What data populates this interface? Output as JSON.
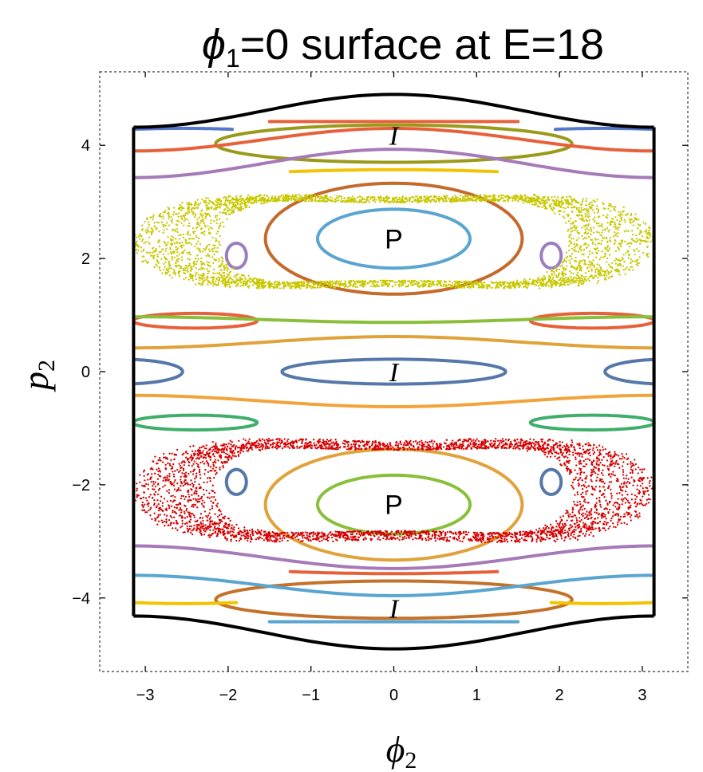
{
  "chart_data": {
    "type": "scatter",
    "title": {
      "phi": "ϕ",
      "sub": "1",
      "rest": "=0 surface at E=18"
    },
    "xlabel": {
      "phi": "ϕ",
      "sub": "2"
    },
    "ylabel": {
      "p": "p",
      "sub": "2"
    },
    "xlim": [
      -3.55,
      3.55
    ],
    "ylim": [
      -5.3,
      5.3
    ],
    "xticks": [
      -3,
      -2,
      -1,
      0,
      1,
      2,
      3
    ],
    "yticks": [
      -4,
      -2,
      0,
      2,
      4
    ],
    "xtick_labels": [
      "−3",
      "−2",
      "−1",
      "0",
      "1",
      "2",
      "3"
    ],
    "ytick_labels": [
      "−4",
      "−2",
      "0",
      "2",
      "4"
    ],
    "grid": false,
    "frame": {
      "xrange": [
        -3.1416,
        3.1416
      ],
      "top_edge_y": 4.32,
      "boundary_center_y": 4.9,
      "boundary_edge_y": 4.32
    },
    "annotations": [
      {
        "text": "P",
        "x": 0.0,
        "y": 2.35,
        "kind": "P"
      },
      {
        "text": "P",
        "x": 0.0,
        "y": -2.35,
        "kind": "P"
      },
      {
        "text": "I",
        "x": 0.0,
        "y": 4.18,
        "kind": "I"
      },
      {
        "text": "I",
        "x": 0.0,
        "y": 0.0,
        "kind": "I"
      },
      {
        "text": "I",
        "x": 0.0,
        "y": -4.18,
        "kind": "I"
      }
    ],
    "chaotic_bands": [
      {
        "color": "#c8c800",
        "center_y": 2.3,
        "inner_a": 2.1,
        "inner_b": 1.25,
        "outer_a": 3.15,
        "outer_b": 1.45
      },
      {
        "color": "#d40000",
        "center_y": -2.1,
        "inner_a": 2.15,
        "inner_b": 1.3,
        "outer_a": 3.15,
        "outer_b": 1.6
      }
    ],
    "curves": [
      {
        "kind": "ellipse",
        "color": "#5aa5d0",
        "cx": 0,
        "cy": 2.35,
        "a": 0.92,
        "b": 0.52
      },
      {
        "kind": "ellipse",
        "color": "#c46a2a",
        "cx": 0,
        "cy": 2.35,
        "a": 1.55,
        "b": 0.98
      },
      {
        "kind": "ellipse",
        "color": "#8abf3a",
        "cx": 0,
        "cy": -2.35,
        "a": 0.92,
        "b": 0.52
      },
      {
        "kind": "ellipse",
        "color": "#e0a23a",
        "cx": 0,
        "cy": -2.35,
        "a": 1.55,
        "b": 0.98
      },
      {
        "kind": "ellipse",
        "color": "#5577aa",
        "cx": 0,
        "cy": 0,
        "a": 1.35,
        "b": 0.22
      },
      {
        "kind": "ellipse",
        "color": "#9b7ec0",
        "cx": -1.9,
        "cy": 2.05,
        "a": 0.12,
        "b": 0.22
      },
      {
        "kind": "ellipse",
        "color": "#9b7ec0",
        "cx": 1.9,
        "cy": 2.05,
        "a": 0.12,
        "b": 0.22
      },
      {
        "kind": "ellipse",
        "color": "#5577aa",
        "cx": -1.9,
        "cy": -1.95,
        "a": 0.12,
        "b": 0.22
      },
      {
        "kind": "ellipse",
        "color": "#5577aa",
        "cx": 1.9,
        "cy": -1.95,
        "a": 0.12,
        "b": 0.22
      },
      {
        "kind": "ellipse",
        "color": "#e8603a",
        "cx": -2.4,
        "cy": 0.9,
        "a": 0.75,
        "b": 0.13
      },
      {
        "kind": "ellipse",
        "color": "#e8603a",
        "cx": 2.4,
        "cy": 0.9,
        "a": 0.75,
        "b": 0.13
      },
      {
        "kind": "ellipse",
        "color": "#3fae6a",
        "cx": -2.4,
        "cy": -0.9,
        "a": 0.75,
        "b": 0.13
      },
      {
        "kind": "ellipse",
        "color": "#3fae6a",
        "cx": 2.4,
        "cy": -0.9,
        "a": 0.75,
        "b": 0.13
      },
      {
        "kind": "ellipse",
        "color": "#9a9a1a",
        "cx": 0,
        "cy": 4.03,
        "a": 2.15,
        "b": 0.33
      },
      {
        "kind": "ellipse",
        "color": "#c4722a",
        "cx": 0,
        "cy": -4.03,
        "a": 2.15,
        "b": 0.33
      },
      {
        "kind": "ellipse",
        "color": "#5577aa",
        "cx": -3.3,
        "cy": 0,
        "a": 0.75,
        "b": 0.22
      },
      {
        "kind": "ellipse",
        "color": "#5577aa",
        "cx": 3.3,
        "cy": 0,
        "a": 0.75,
        "b": 0.22
      },
      {
        "kind": "wave",
        "color": "#e0a23a",
        "base": 0.52,
        "amp": 0.1,
        "phase": 0
      },
      {
        "kind": "wave",
        "color": "#f2a33a",
        "base": -0.52,
        "amp": -0.1,
        "phase": 0
      },
      {
        "kind": "wave",
        "color": "#8abf3a",
        "base": 0.92,
        "amp": -0.05,
        "phase": 0
      },
      {
        "kind": "wave",
        "color": "#e8603a",
        "base": 4.42,
        "amp": 0.0,
        "phase": 0,
        "xrange": [
          -1.5,
          1.5
        ]
      },
      {
        "kind": "wave",
        "color": "#a67ab8",
        "base": 3.68,
        "amp": 0.25,
        "phase": 0
      },
      {
        "kind": "wave",
        "color": "#e8603a",
        "base": 4.1,
        "amp": 0.2,
        "phase": 0
      },
      {
        "kind": "wave",
        "color": "#5aa5d0",
        "base": -3.78,
        "amp": -0.18,
        "phase": 0
      },
      {
        "kind": "wave",
        "color": "#a67ab8",
        "base": -3.28,
        "amp": -0.2,
        "phase": 0
      },
      {
        "kind": "wave",
        "color": "#5aa5d0",
        "base": -4.42,
        "amp": 0.0,
        "phase": 0,
        "xrange": [
          -1.5,
          1.5
        ]
      },
      {
        "kind": "arcL",
        "color": "#5577cc",
        "y": 4.2,
        "x0": -3.14,
        "x1": -1.95,
        "dy": 0.1
      },
      {
        "kind": "arcL",
        "color": "#5577cc",
        "y": 4.2,
        "x0": 1.95,
        "x1": 3.14,
        "dy": 0.1
      },
      {
        "kind": "arcL",
        "color": "#f2c300",
        "y": -4.0,
        "x0": -3.14,
        "x1": -1.9,
        "dy": -0.1
      },
      {
        "kind": "arcL",
        "color": "#f2c300",
        "y": -4.0,
        "x0": 1.9,
        "x1": 3.14,
        "dy": -0.1
      },
      {
        "kind": "arcL",
        "color": "#f2c300",
        "y": 3.52,
        "x0": -1.25,
        "x1": 1.25,
        "dy": 0.05
      },
      {
        "kind": "arcL",
        "color": "#e8603a",
        "y": -3.52,
        "x0": -1.25,
        "x1": 1.25,
        "dy": -0.05
      }
    ]
  }
}
